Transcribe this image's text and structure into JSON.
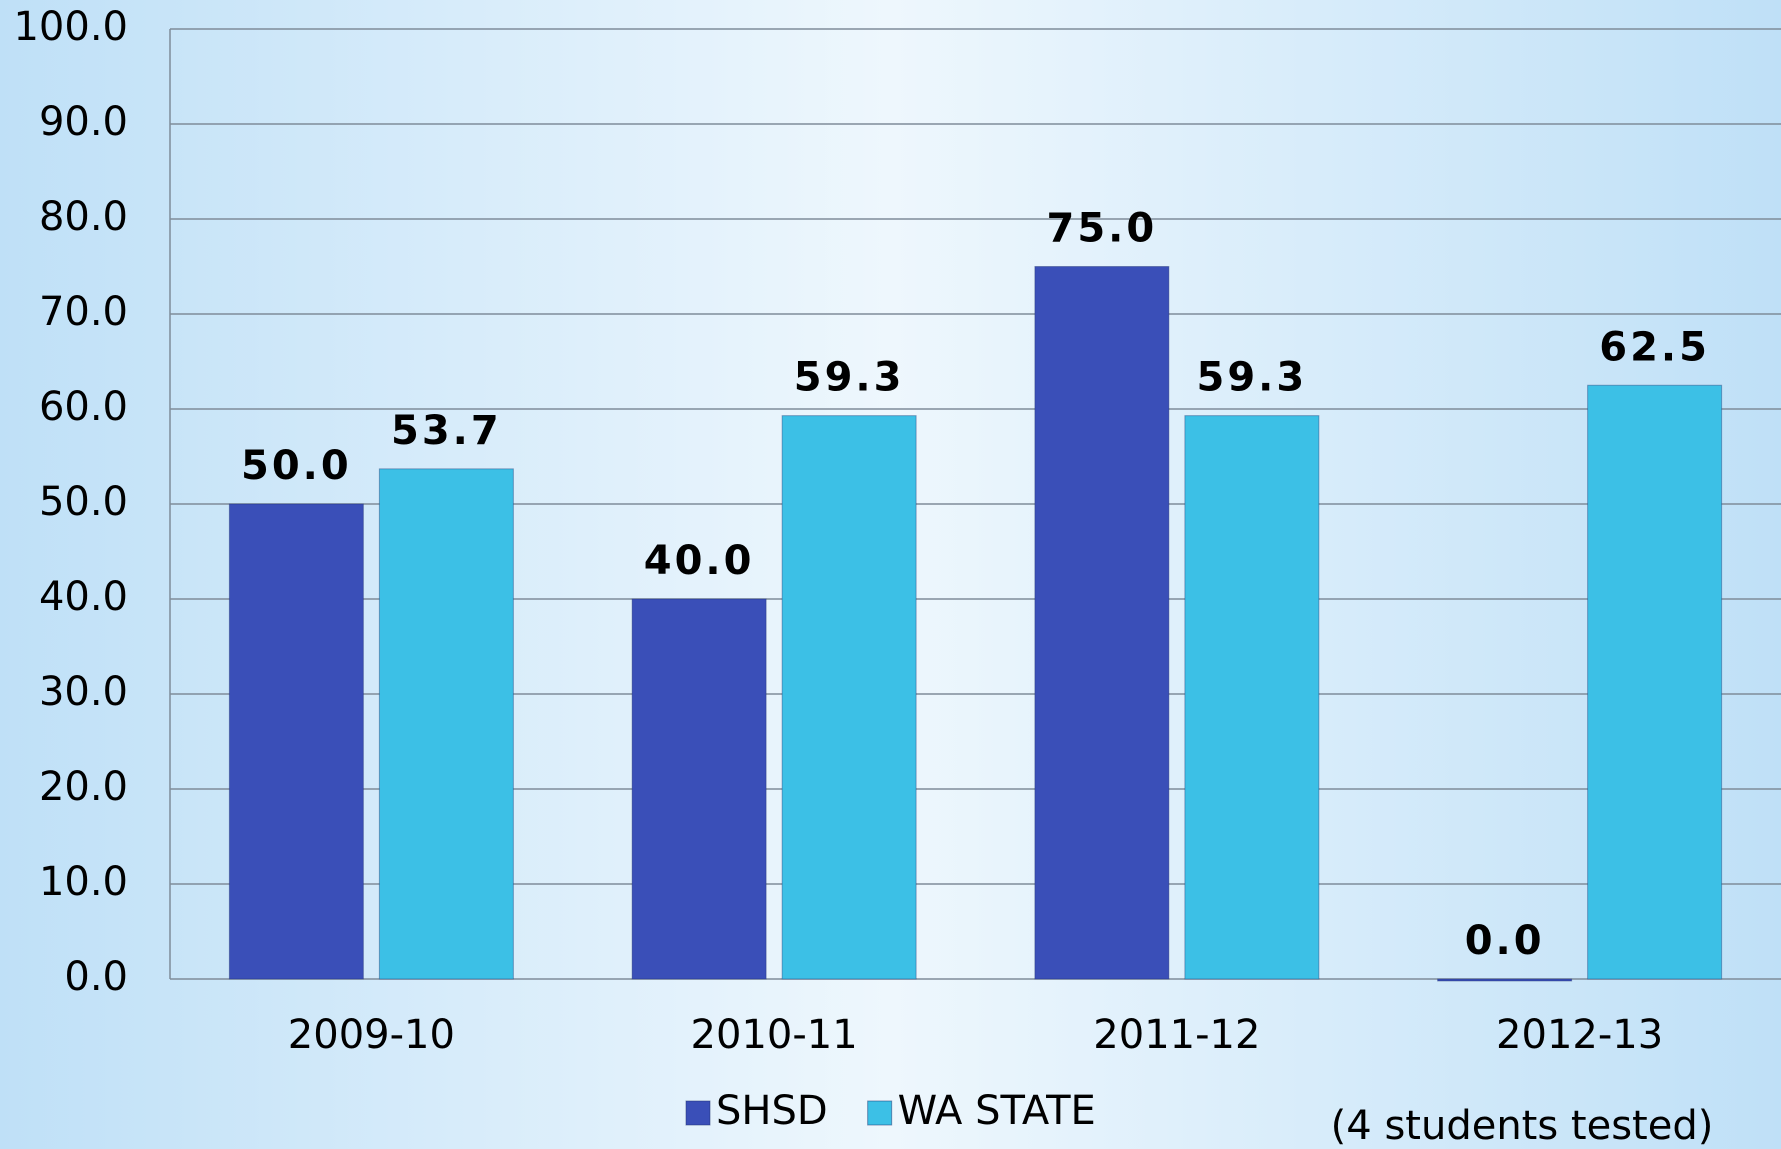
{
  "chart_data": {
    "type": "bar",
    "categories": [
      "2009-10",
      "2010-11",
      "2011-12",
      "2012-13"
    ],
    "series": [
      {
        "name": "SHSD",
        "color": "#3a4fb8",
        "values": [
          50,
          40,
          75,
          0
        ],
        "value_labels": [
          "50.0",
          "40.0",
          "75.0",
          "0.0"
        ]
      },
      {
        "name": "WA STATE",
        "color": "#3cc0e6",
        "values": [
          53.7,
          59.3,
          59.3,
          62.5
        ],
        "value_labels": [
          "53.7",
          "59.3",
          "59.3",
          "62.5"
        ]
      }
    ],
    "ylim": [
      0,
      100
    ],
    "yticks": [
      {
        "value": 0,
        "label": "0.0"
      },
      {
        "value": 10,
        "label": "10.0"
      },
      {
        "value": 20,
        "label": "20.0"
      },
      {
        "value": 30,
        "label": "30.0"
      },
      {
        "value": 40,
        "label": "40.0"
      },
      {
        "value": 50,
        "label": "50.0"
      },
      {
        "value": 60,
        "label": "60.0"
      },
      {
        "value": 70,
        "label": "70.0"
      },
      {
        "value": 80,
        "label": "80.0"
      },
      {
        "value": 90,
        "label": "90.0"
      },
      {
        "value": 100,
        "label": "100.0"
      }
    ],
    "grid": true,
    "legend": "bottom",
    "annotation": "(4 students tested)"
  }
}
